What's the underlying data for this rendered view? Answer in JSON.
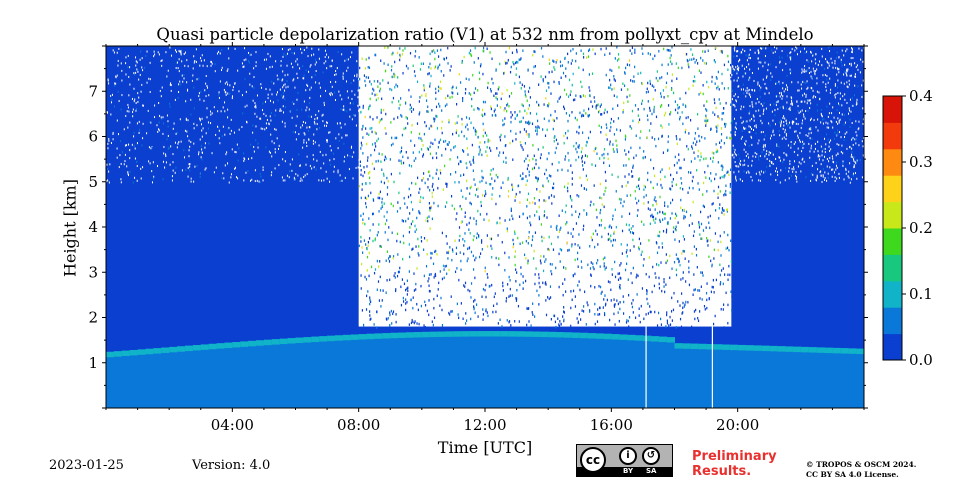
{
  "chart_data": {
    "type": "heatmap",
    "title": "Quasi particle depolarization ratio (V1) at 532 nm from pollyxt_cpv at Mindelo",
    "xlabel": "Time [UTC]",
    "ylabel": "Height [km]",
    "xlim": [
      0,
      24
    ],
    "ylim": [
      0,
      8
    ],
    "x_ticks": [
      {
        "value": 4,
        "label": "04:00"
      },
      {
        "value": 8,
        "label": "08:00"
      },
      {
        "value": 12,
        "label": "12:00"
      },
      {
        "value": 16,
        "label": "16:00"
      },
      {
        "value": 20,
        "label": "20:00"
      }
    ],
    "y_ticks": [
      {
        "value": 1,
        "label": "1"
      },
      {
        "value": 2,
        "label": "2"
      },
      {
        "value": 3,
        "label": "3"
      },
      {
        "value": 4,
        "label": "4"
      },
      {
        "value": 5,
        "label": "5"
      },
      {
        "value": 6,
        "label": "6"
      },
      {
        "value": 7,
        "label": "7"
      }
    ],
    "colorbar": {
      "range": [
        0.0,
        0.4
      ],
      "ticks": [
        {
          "value": 0.0,
          "label": "0.0"
        },
        {
          "value": 0.1,
          "label": "0.1"
        },
        {
          "value": 0.2,
          "label": "0.2"
        },
        {
          "value": 0.3,
          "label": "0.3"
        },
        {
          "value": 0.4,
          "label": "0.4"
        }
      ],
      "colors": [
        "#0b3fd0",
        "#0a78d8",
        "#10b3c8",
        "#18c87e",
        "#3ed81e",
        "#c8e81a",
        "#ffd21a",
        "#ff8a12",
        "#f23a0c",
        "#d81408"
      ]
    },
    "regions": [
      {
        "name": "boundary layer",
        "t_start": 0,
        "t_end": 24,
        "h_start": 0,
        "h_top": 1.5,
        "value": 0.06
      },
      {
        "name": "night free troposphere",
        "t_start": 0,
        "t_end": 8,
        "h_start": 1.5,
        "h_top": 8,
        "value": 0.0
      },
      {
        "name": "daytime noisy free troposphere",
        "t_start": 8,
        "t_end": 19.8,
        "h_start": 1.8,
        "h_top": 8,
        "value": 0.12
      },
      {
        "name": "evening free troposphere",
        "t_start": 19.8,
        "t_end": 24,
        "h_start": 1.5,
        "h_top": 8,
        "value": 0.0
      }
    ],
    "data_gaps_utc": [
      17.1,
      19.2
    ]
  },
  "footer": {
    "date": "2023-01-25",
    "version": "Version: 4.0",
    "preliminary": [
      "Preliminary",
      "Results."
    ],
    "copyright": [
      "© TROPOS & OSCM 2024.",
      "CC BY SA 4.0 License."
    ],
    "license_badge": {
      "cc": "cc",
      "by": "BY",
      "sa": "SA"
    }
  }
}
